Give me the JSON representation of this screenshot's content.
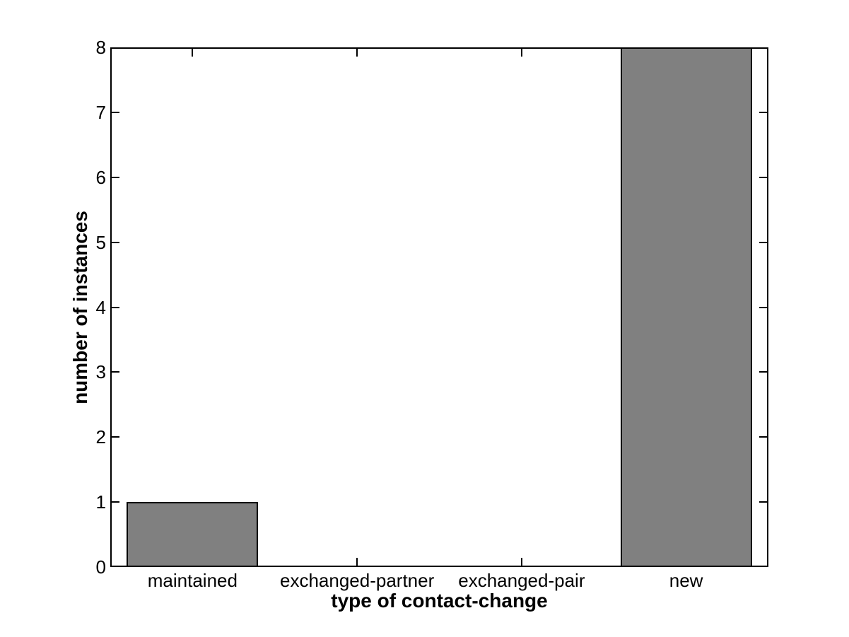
{
  "chart_data": {
    "type": "bar",
    "categories": [
      "maintained",
      "exchanged-partner",
      "exchanged-pair",
      "new"
    ],
    "values": [
      1,
      0,
      0,
      8
    ],
    "title": "",
    "xlabel": "type of contact-change",
    "ylabel": "number of instances",
    "ylim": [
      0,
      8
    ],
    "yticks": [
      0,
      1,
      2,
      3,
      4,
      5,
      6,
      7,
      8
    ],
    "bar_width_fraction": 0.8,
    "bar_color": "#808080",
    "bar_edge_color": "#000000",
    "axis_color": "#000000",
    "background_color": "#ffffff",
    "grid": "off",
    "box": "on",
    "legend": "none",
    "tick_direction": "in"
  }
}
